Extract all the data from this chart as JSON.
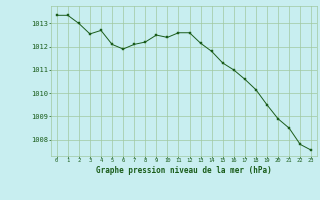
{
  "x": [
    0,
    1,
    2,
    3,
    4,
    5,
    6,
    7,
    8,
    9,
    10,
    11,
    12,
    13,
    14,
    15,
    16,
    17,
    18,
    19,
    20,
    21,
    22,
    23
  ],
  "y": [
    1013.35,
    1013.35,
    1013.0,
    1012.55,
    1012.7,
    1012.1,
    1011.9,
    1012.1,
    1012.2,
    1012.5,
    1012.4,
    1012.6,
    1012.6,
    1012.15,
    1011.8,
    1011.3,
    1011.0,
    1010.6,
    1010.15,
    1009.5,
    1008.9,
    1008.5,
    1007.8,
    1007.55
  ],
  "line_color": "#1a5c1a",
  "marker_color": "#1a5c1a",
  "bg_color": "#c8eef0",
  "grid_color": "#a0c8a0",
  "xlabel": "Graphe pression niveau de la mer (hPa)",
  "xlabel_color": "#1a5c1a",
  "tick_color": "#1a5c1a",
  "ylim_min": 1007.3,
  "ylim_max": 1013.75,
  "yticks": [
    1008,
    1009,
    1010,
    1011,
    1012,
    1013
  ],
  "xticks": [
    0,
    1,
    2,
    3,
    4,
    5,
    6,
    7,
    8,
    9,
    10,
    11,
    12,
    13,
    14,
    15,
    16,
    17,
    18,
    19,
    20,
    21,
    22,
    23
  ]
}
